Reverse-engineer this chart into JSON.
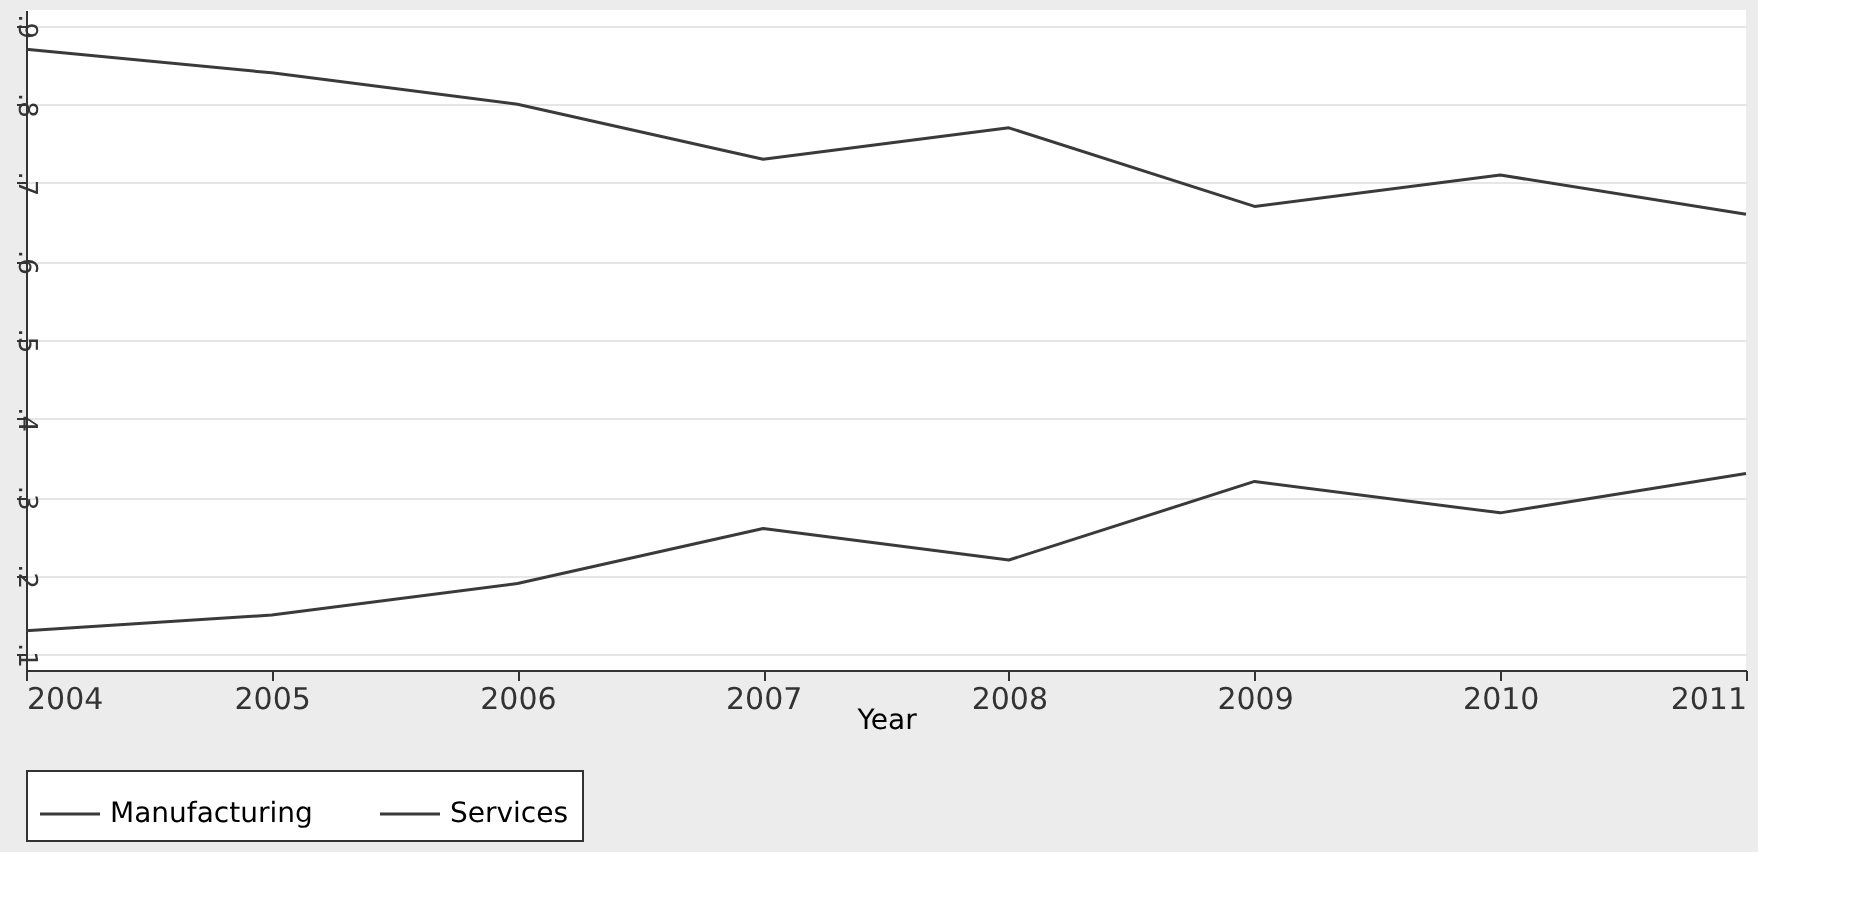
{
  "chart_data": {
    "type": "line",
    "xlabel": "Year",
    "x": [
      2004,
      2005,
      2006,
      2007,
      2008,
      2009,
      2010,
      2011
    ],
    "series": [
      {
        "name": "Manufacturing",
        "color": "#3a3a3a",
        "values": [
          0.87,
          0.84,
          0.8,
          0.73,
          0.77,
          0.67,
          0.71,
          0.66
        ]
      },
      {
        "name": "Services",
        "color": "#3a3a3a",
        "values": [
          0.13,
          0.15,
          0.19,
          0.26,
          0.22,
          0.32,
          0.28,
          0.33
        ]
      }
    ],
    "xlim": [
      2004,
      2011
    ],
    "xticks": [
      2004,
      2005,
      2006,
      2007,
      2008,
      2009,
      2010,
      2011
    ],
    "ylim": [
      0.08,
      0.92
    ],
    "yticks": [
      {
        "value": 0.1,
        "label": ".1"
      },
      {
        "value": 0.2,
        "label": ".2"
      },
      {
        "value": 0.3,
        "label": ".3"
      },
      {
        "value": 0.4,
        "label": ".4"
      },
      {
        "value": 0.5,
        "label": ".5"
      },
      {
        "value": 0.6,
        "label": ".6"
      },
      {
        "value": 0.7,
        "label": ".7"
      },
      {
        "value": 0.8,
        "label": ".8"
      },
      {
        "value": 0.9,
        "label": ".9"
      }
    ],
    "grid": "y",
    "legend": "bottom",
    "marker": "none",
    "line_style": "solid"
  }
}
